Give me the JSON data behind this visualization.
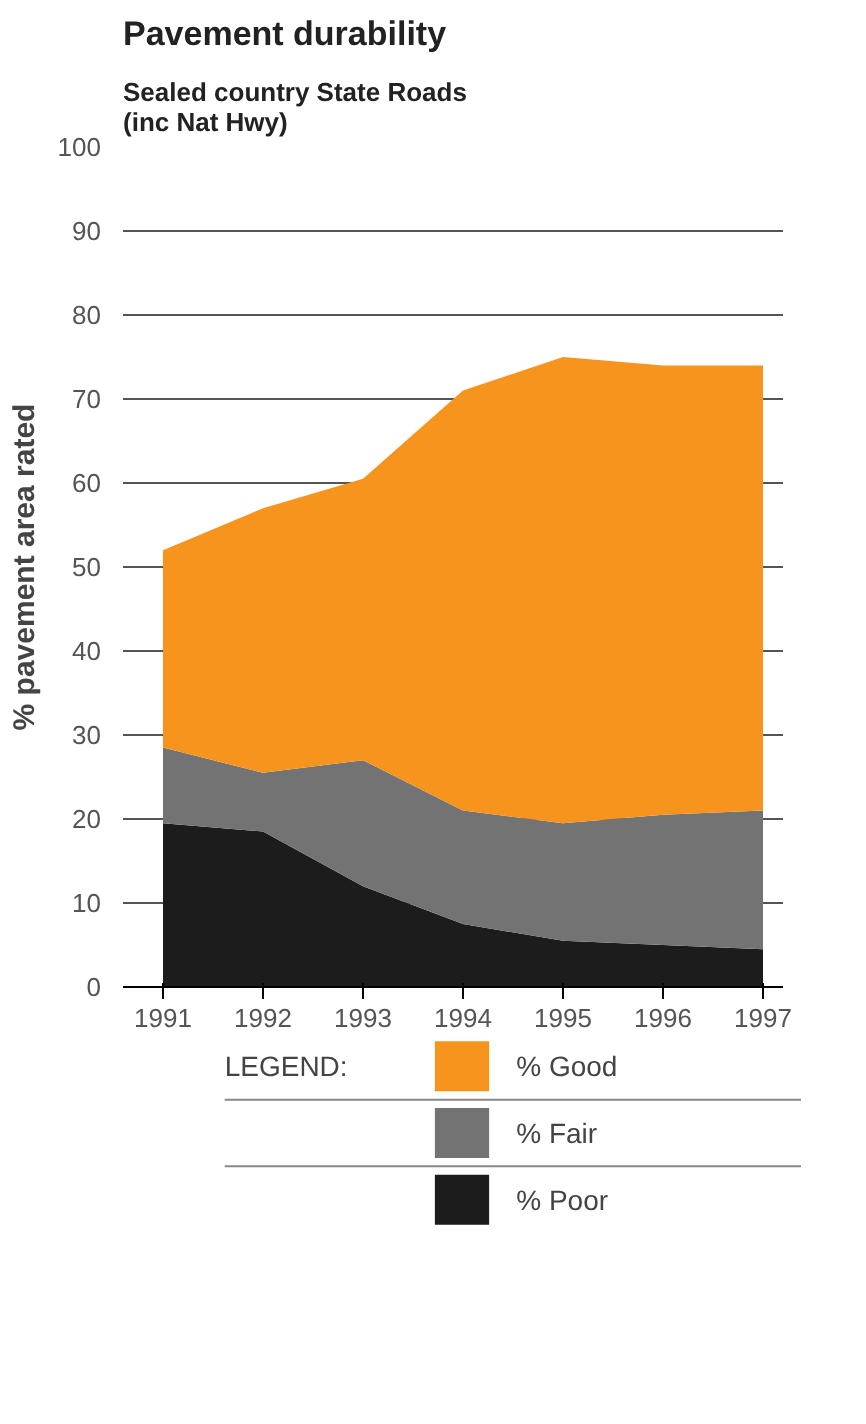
{
  "chart_data": {
    "type": "area",
    "stacked": true,
    "title": "Pavement durability",
    "subtitle": "Sealed country State Roads\n(inc Nat Hwy)",
    "ylabel": "% pavement area rated",
    "legend_title": "LEGEND:",
    "x": [
      1991,
      1992,
      1993,
      1994,
      1995,
      1996,
      1997
    ],
    "xlim": [
      1990.6,
      1997.2
    ],
    "xticks": [
      1991,
      1992,
      1993,
      1994,
      1995,
      1996,
      1997
    ],
    "ylim": [
      0,
      100
    ],
    "yticks": [
      0,
      10,
      20,
      30,
      40,
      50,
      60,
      70,
      80,
      90,
      100
    ],
    "grid": "y",
    "legend": "bottom",
    "series": [
      {
        "name": "% Poor",
        "color": "#1c1c1c",
        "values": [
          19.5,
          18.5,
          12,
          7.5,
          5.5,
          5,
          4.5
        ]
      },
      {
        "name": "% Fair",
        "color": "#737373",
        "values": [
          9,
          7,
          15,
          13.5,
          14,
          15.5,
          16.5
        ]
      },
      {
        "name": "% Good",
        "color": "#f7941d",
        "values": [
          23.5,
          31.5,
          33.5,
          50,
          55.5,
          53.5,
          53
        ]
      }
    ]
  }
}
